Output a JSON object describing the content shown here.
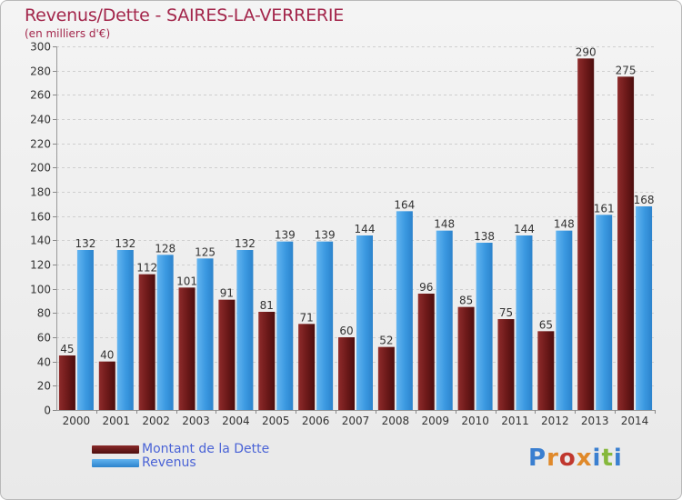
{
  "title": "Revenus/Dette - SAIRES-LA-VERRERIE",
  "subtitle": "(en milliers d'€)",
  "brand": "Proxiti",
  "colors": {
    "debt": "#6b1a1a",
    "debt_light": "#8a2a2a",
    "revenue": "#2b86cf",
    "revenue_light": "#5fb0ee",
    "title": "#a3264b",
    "legend_text": "#4a63d6"
  },
  "legend": {
    "items": [
      {
        "label": "Montant de la Dette",
        "color": "#6b1a1a"
      },
      {
        "label": "Revenus",
        "color": "#3b98e0"
      }
    ]
  },
  "chart_data": {
    "type": "bar",
    "categories": [
      "2000",
      "2001",
      "2002",
      "2003",
      "2004",
      "2005",
      "2006",
      "2007",
      "2008",
      "2009",
      "2010",
      "2011",
      "2012",
      "2013",
      "2014"
    ],
    "series": [
      {
        "name": "Montant de la Dette",
        "values": [
          45,
          40,
          112,
          101,
          91,
          81,
          71,
          60,
          52,
          96,
          85,
          75,
          65,
          290,
          275
        ]
      },
      {
        "name": "Revenus",
        "values": [
          132,
          132,
          128,
          125,
          132,
          139,
          139,
          144,
          164,
          148,
          138,
          144,
          148,
          161,
          168
        ]
      }
    ],
    "ylim": [
      0,
      300
    ],
    "yticks": [
      0,
      20,
      40,
      60,
      80,
      100,
      120,
      140,
      160,
      180,
      200,
      220,
      240,
      260,
      280,
      300
    ],
    "grid": true,
    "legend_position": "bottom-left"
  }
}
